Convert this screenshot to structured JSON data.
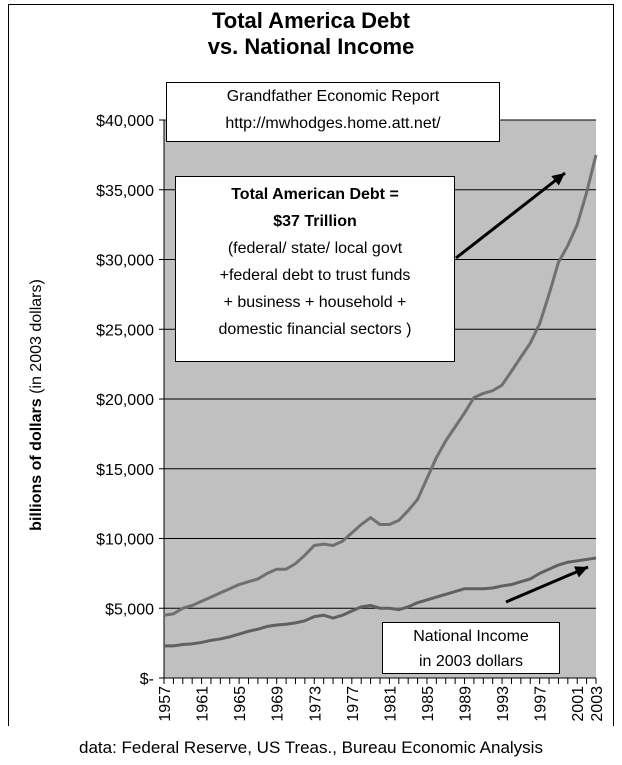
{
  "chart_data": {
    "type": "line",
    "title_line1": "Total America Debt",
    "title_line2": "vs. National Income",
    "credit_line1": "Grandfather Economic Report",
    "credit_line2": "http://mwhodges.home.att.net/",
    "ylabel_bold": "billions of dollars",
    "ylabel_rest": " (in 2003 dollars)",
    "ylim": [
      0,
      40000
    ],
    "yticks": [
      0,
      5000,
      10000,
      15000,
      20000,
      25000,
      30000,
      35000,
      40000
    ],
    "ytick_labels": [
      "$-",
      "$5,000",
      "$10,000",
      "$15,000",
      "$20,000",
      "$25,000",
      "$30,000",
      "$35,000",
      "$40,000"
    ],
    "xlim": [
      1957,
      2003
    ],
    "xtick_labels": [
      "1957",
      "1961",
      "1965",
      "1969",
      "1973",
      "1977",
      "1981",
      "1985",
      "1989",
      "1993",
      "1997",
      "2001",
      "2003"
    ],
    "plot_background": "#c0c0c0",
    "grid": true,
    "annotation_debt": {
      "line1": "Total American Debt =",
      "line2": "$37 Trillion",
      "line3": "(federal/ state/ local govt",
      "line4": "+federal debt to trust funds",
      "line5": "+ business + household +",
      "line6": "domestic financial sectors )"
    },
    "annotation_income": {
      "line1": "National Income",
      "line2": "in 2003 dollars"
    },
    "source": "data: Federal Reserve, US Treas., Bureau Economic Analysis",
    "x": [
      1957,
      1958,
      1959,
      1960,
      1961,
      1962,
      1963,
      1964,
      1965,
      1966,
      1967,
      1968,
      1969,
      1970,
      1971,
      1972,
      1973,
      1974,
      1975,
      1976,
      1977,
      1978,
      1979,
      1980,
      1981,
      1982,
      1983,
      1984,
      1985,
      1986,
      1987,
      1988,
      1989,
      1990,
      1991,
      1992,
      1993,
      1994,
      1995,
      1996,
      1997,
      1998,
      1999,
      2000,
      2001,
      2002,
      2003
    ],
    "series": [
      {
        "color": "#707070",
        "values": [
          4500,
          4600,
          5000,
          5200,
          5500,
          5800,
          6100,
          6400,
          6700,
          6900,
          7100,
          7500,
          7800,
          7800,
          8200,
          8800,
          9500,
          9600,
          9500,
          9800,
          10400,
          11000,
          11500,
          11000,
          11000,
          11300,
          12000,
          12800,
          14300,
          15800,
          17000,
          18000,
          19000,
          20100,
          20400,
          20600,
          21000,
          22000,
          23000,
          24000,
          25400,
          27500,
          29800,
          31000,
          32500,
          34800,
          37500
        ]
      },
      {
        "color": "#606060",
        "values": [
          2300,
          2300,
          2400,
          2450,
          2550,
          2700,
          2800,
          2950,
          3150,
          3350,
          3500,
          3700,
          3800,
          3850,
          3950,
          4100,
          4400,
          4500,
          4300,
          4500,
          4800,
          5100,
          5200,
          5000,
          5000,
          4900,
          5100,
          5400,
          5600,
          5800,
          6000,
          6200,
          6400,
          6400,
          6400,
          6450,
          6600,
          6700,
          6900,
          7100,
          7500,
          7800,
          8100,
          8300,
          8400,
          8500,
          8600
        ]
      }
    ]
  }
}
